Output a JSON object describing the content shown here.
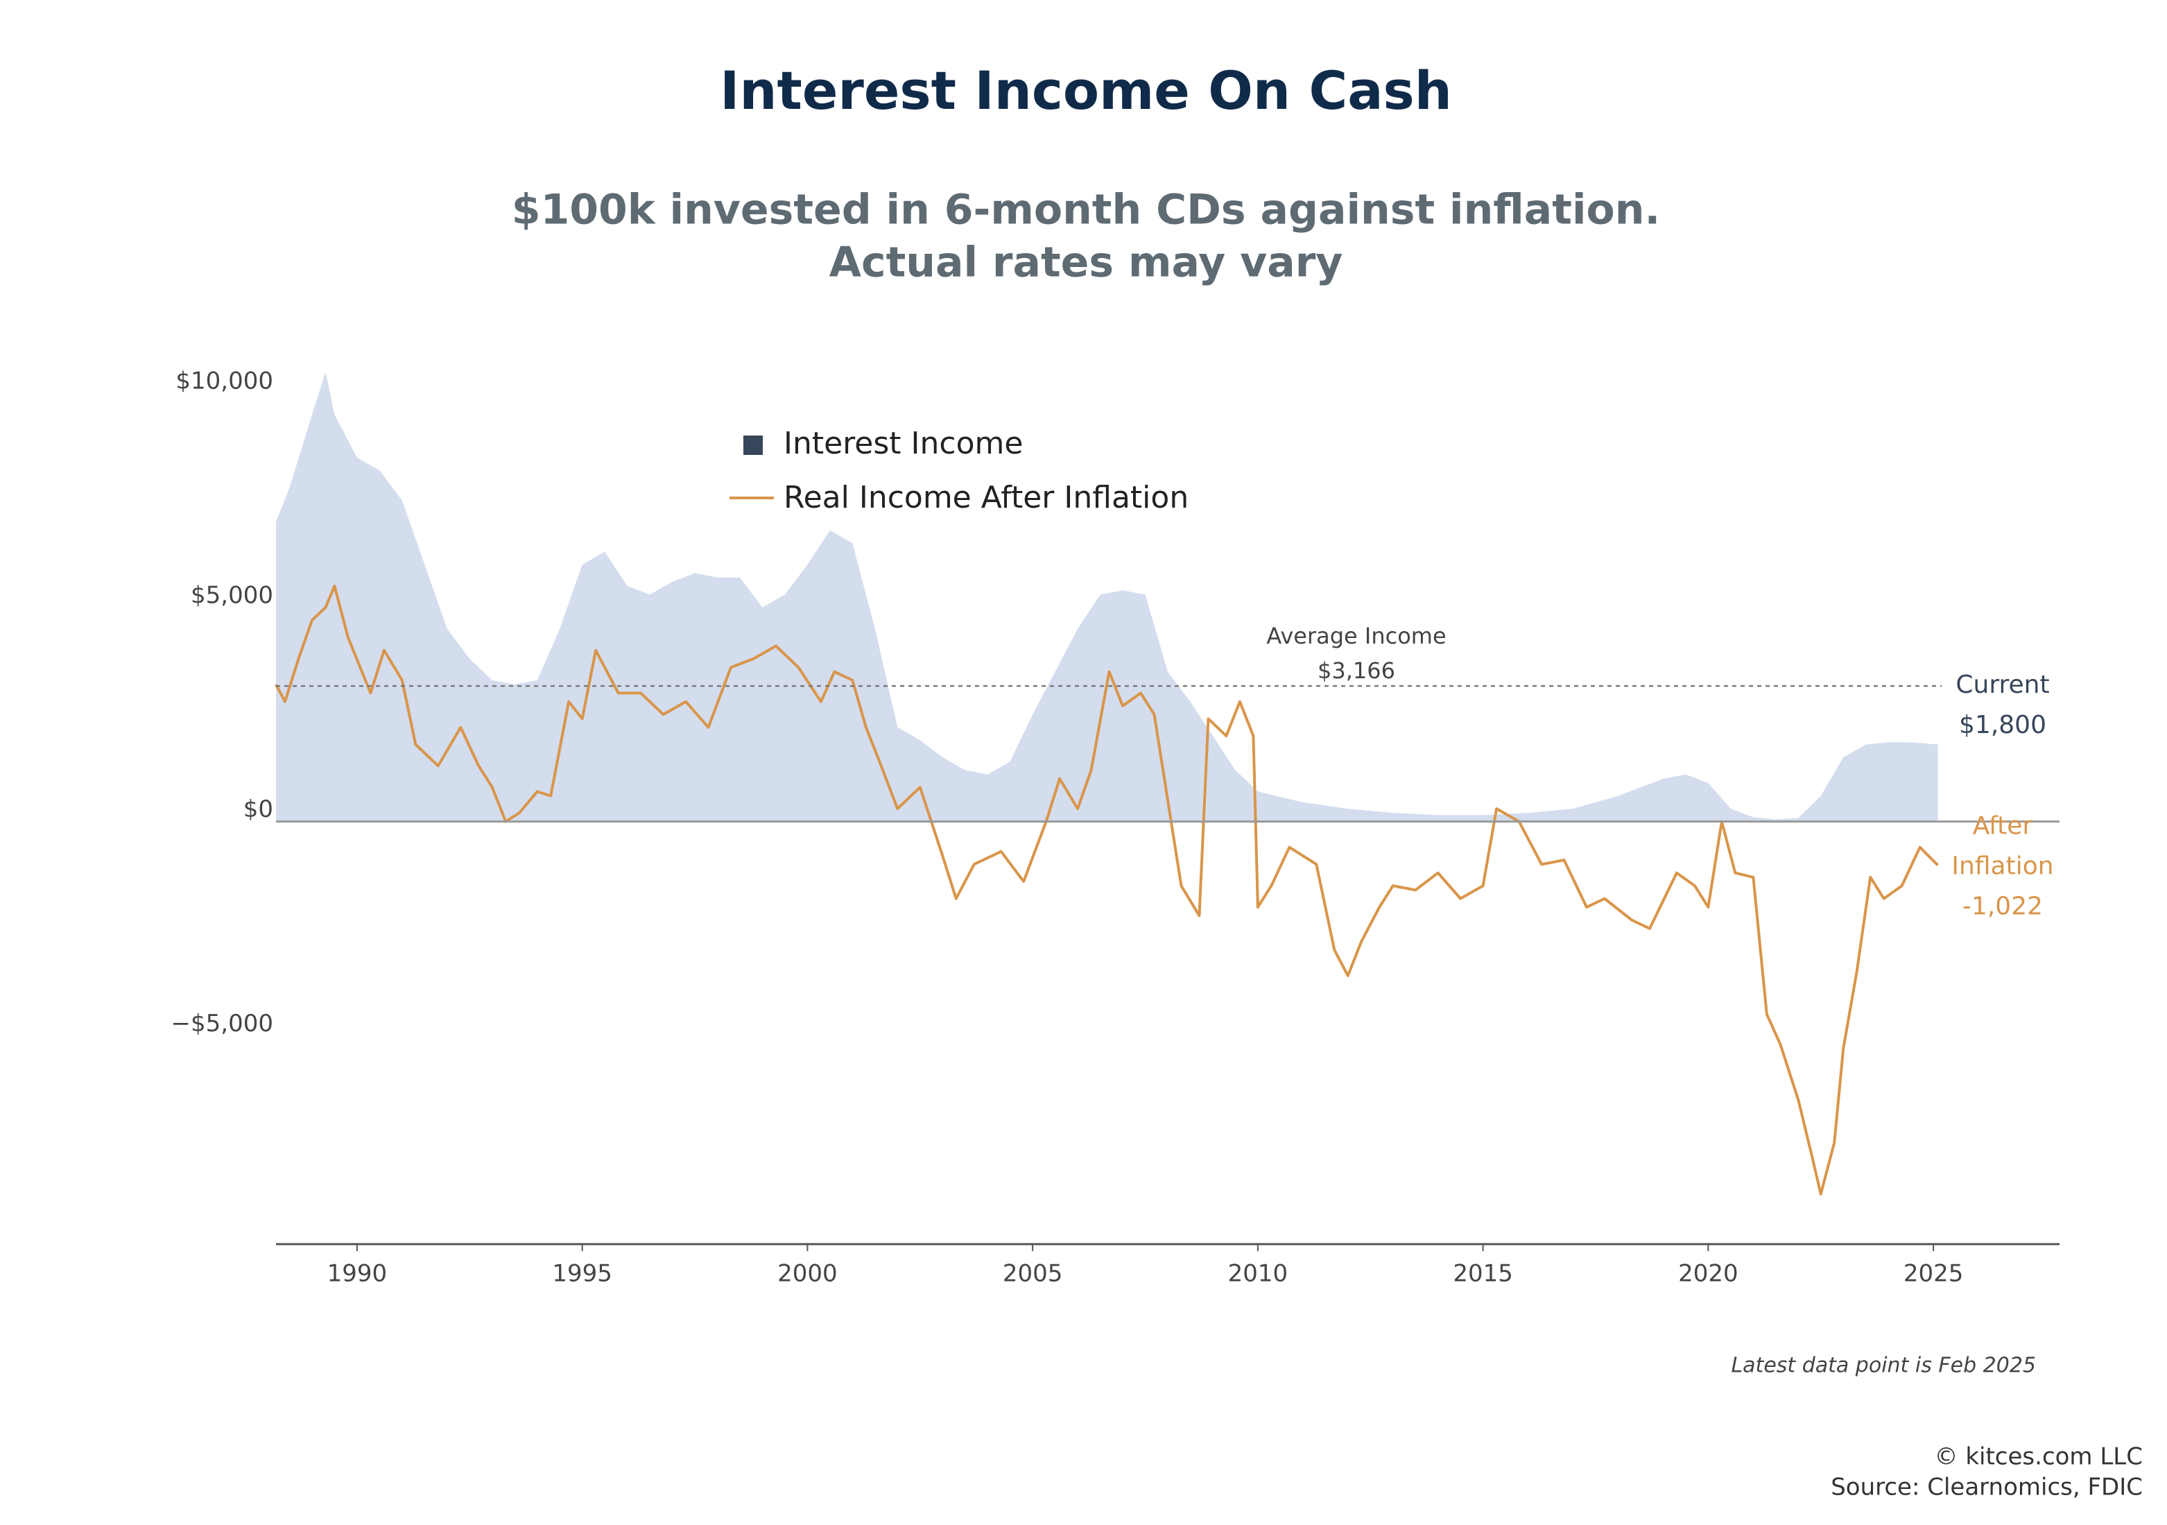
{
  "chart_data": {
    "type": "area-line",
    "title": "Interest Income On Cash",
    "subtitle": [
      "$100k invested in 6-month CDs against inflation.",
      "Actual rates may vary"
    ],
    "xlim": [
      1988.2,
      2027.8
    ],
    "xticks": [
      1990,
      1995,
      2000,
      2005,
      2010,
      2015,
      2020,
      2025
    ],
    "ylim": [
      -9870,
      10700
    ],
    "yticks": [
      {
        "value": 10000,
        "label": "$10,000"
      },
      {
        "value": 5000,
        "label": "$5,000"
      },
      {
        "value": 0,
        "label": "$0"
      },
      {
        "value": -5000,
        "label": "−$5,000"
      }
    ],
    "series": [
      {
        "name": "Interest Income",
        "kind": "area",
        "color": "#d3ddee",
        "legend_color": "#37465a",
        "x": [
          1988.2,
          1988.5,
          1989.0,
          1989.3,
          1989.5,
          1990.0,
          1990.5,
          1991.0,
          1991.5,
          1992.0,
          1992.5,
          1993.0,
          1993.5,
          1994.0,
          1994.5,
          1995.0,
          1995.5,
          1996.0,
          1996.5,
          1997.0,
          1997.5,
          1998.0,
          1998.5,
          1999.0,
          1999.5,
          2000.0,
          2000.5,
          2001.0,
          2001.5,
          2002.0,
          2002.5,
          2003.0,
          2003.5,
          2004.0,
          2004.5,
          2005.0,
          2005.5,
          2006.0,
          2006.5,
          2007.0,
          2007.5,
          2008.0,
          2008.5,
          2009.0,
          2009.5,
          2010.0,
          2011.0,
          2012.0,
          2013.0,
          2014.0,
          2015.0,
          2016.0,
          2017.0,
          2018.0,
          2019.0,
          2019.5,
          2020.0,
          2020.5,
          2021.0,
          2021.5,
          2022.0,
          2022.5,
          2023.0,
          2023.5,
          2024.0,
          2024.5,
          2025.1
        ],
        "values": [
          7000,
          7800,
          9500,
          10500,
          9500,
          8500,
          8200,
          7500,
          6000,
          4500,
          3800,
          3300,
          3200,
          3300,
          4500,
          6000,
          6300,
          5500,
          5300,
          5600,
          5800,
          5700,
          5700,
          5000,
          5300,
          6000,
          6800,
          6500,
          4500,
          2200,
          1900,
          1500,
          1200,
          1100,
          1400,
          2500,
          3500,
          4500,
          5300,
          5400,
          5300,
          3500,
          2800,
          2000,
          1200,
          700,
          450,
          300,
          200,
          150,
          150,
          200,
          300,
          600,
          1000,
          1100,
          900,
          300,
          100,
          50,
          80,
          600,
          1500,
          1800,
          1850,
          1850,
          1800
        ]
      },
      {
        "name": "Real Income After Inflation",
        "kind": "line",
        "color": "#d9954a",
        "x": [
          1988.2,
          1988.4,
          1988.7,
          1989.0,
          1989.3,
          1989.5,
          1989.8,
          1990.3,
          1990.6,
          1991.0,
          1991.3,
          1991.8,
          1992.3,
          1992.7,
          1993.0,
          1993.3,
          1993.6,
          1994.0,
          1994.3,
          1994.7,
          1995.0,
          1995.3,
          1995.8,
          1996.3,
          1996.8,
          1997.3,
          1997.8,
          1998.3,
          1998.8,
          1999.3,
          1999.8,
          2000.3,
          2000.6,
          2001.0,
          2001.3,
          2001.6,
          2002.0,
          2002.5,
          2003.0,
          2003.3,
          2003.7,
          2004.3,
          2004.8,
          2005.3,
          2005.6,
          2006.0,
          2006.3,
          2006.7,
          2007.0,
          2007.4,
          2007.7,
          2008.0,
          2008.3,
          2008.7,
          2008.9,
          2009.3,
          2009.6,
          2009.9,
          2010.0,
          2010.3,
          2010.7,
          2011.3,
          2011.7,
          2012.0,
          2012.3,
          2012.7,
          2013.0,
          2013.5,
          2014.0,
          2014.5,
          2015.0,
          2015.3,
          2015.8,
          2016.3,
          2016.8,
          2017.3,
          2017.7,
          2018.3,
          2018.7,
          2019.3,
          2019.7,
          2020.0,
          2020.3,
          2020.6,
          2021.0,
          2021.3,
          2021.6,
          2022.0,
          2022.3,
          2022.5,
          2022.8,
          2023.0,
          2023.3,
          2023.6,
          2023.9,
          2024.3,
          2024.7,
          2025.1
        ],
        "values": [
          3200,
          2800,
          3800,
          4700,
          5000,
          5500,
          4300,
          3000,
          4000,
          3300,
          1800,
          1300,
          2200,
          1300,
          800,
          0,
          200,
          700,
          600,
          2800,
          2400,
          4000,
          3000,
          3000,
          2500,
          2800,
          2200,
          3600,
          3800,
          4100,
          3600,
          2800,
          3500,
          3300,
          2200,
          1400,
          300,
          800,
          -800,
          -1800,
          -1000,
          -700,
          -1400,
          0,
          1000,
          300,
          1200,
          3500,
          2700,
          3000,
          2500,
          500,
          -1500,
          -2200,
          2400,
          2000,
          2800,
          2000,
          -2000,
          -1500,
          -600,
          -1000,
          -3000,
          -3600,
          -2800,
          -2000,
          -1500,
          -1600,
          -1200,
          -1800,
          -1500,
          300,
          0,
          -1000,
          -900,
          -2000,
          -1800,
          -2300,
          -2500,
          -1200,
          -1500,
          -2000,
          0,
          -1200,
          -1300,
          -4500,
          -5200,
          -6500,
          -7800,
          -8700,
          -7500,
          -5300,
          -3500,
          -1300,
          -1800,
          -1500,
          -600,
          -1022
        ]
      }
    ],
    "reference_line": {
      "value": 3166,
      "label": [
        "Average Income",
        "$3,166"
      ]
    },
    "end_labels": [
      {
        "lines": [
          "Current",
          "$1,800"
        ],
        "value": 1800
      },
      {
        "lines": [
          "After",
          "Inflation",
          "-1,022"
        ],
        "value": -1022
      }
    ],
    "note": "Latest data point is Feb 2025",
    "footer": [
      "© kitces.com LLC",
      "Source: Clearnomics, FDIC"
    ]
  }
}
